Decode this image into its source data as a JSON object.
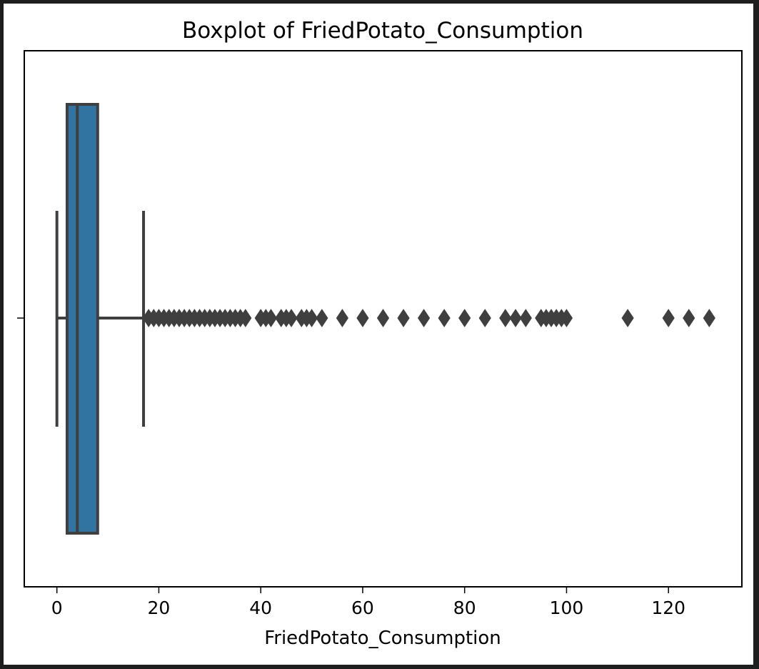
{
  "chart_data": {
    "type": "box",
    "orientation": "horizontal",
    "title": "Boxplot of FriedPotato_Consumption",
    "xlabel": "FriedPotato_Consumption",
    "ylabel": "",
    "xlim": [
      -6.4,
      134.4
    ],
    "xticks": [
      0,
      20,
      40,
      60,
      80,
      100,
      120
    ],
    "xtick_labels": [
      "0",
      "20",
      "40",
      "60",
      "80",
      "100",
      "120"
    ],
    "box": {
      "whisker_low": 0,
      "q1": 2,
      "median": 4,
      "q3": 8,
      "whisker_high": 17
    },
    "outliers": [
      18,
      19,
      20,
      21,
      22,
      23,
      24,
      25,
      26,
      27,
      28,
      29,
      30,
      31,
      32,
      33,
      34,
      35,
      36,
      37,
      40,
      41,
      42,
      44,
      45,
      46,
      48,
      49,
      50,
      52,
      56,
      60,
      64,
      68,
      72,
      76,
      80,
      84,
      88,
      90,
      92,
      95,
      96,
      97,
      98,
      99,
      100,
      112,
      120,
      124,
      128
    ],
    "grid": false,
    "colors": {
      "box_fill": "#3274a1",
      "lines": "#3f3f3f",
      "outlier": "#3f3f3f",
      "frame": "#1e1e1e"
    }
  }
}
